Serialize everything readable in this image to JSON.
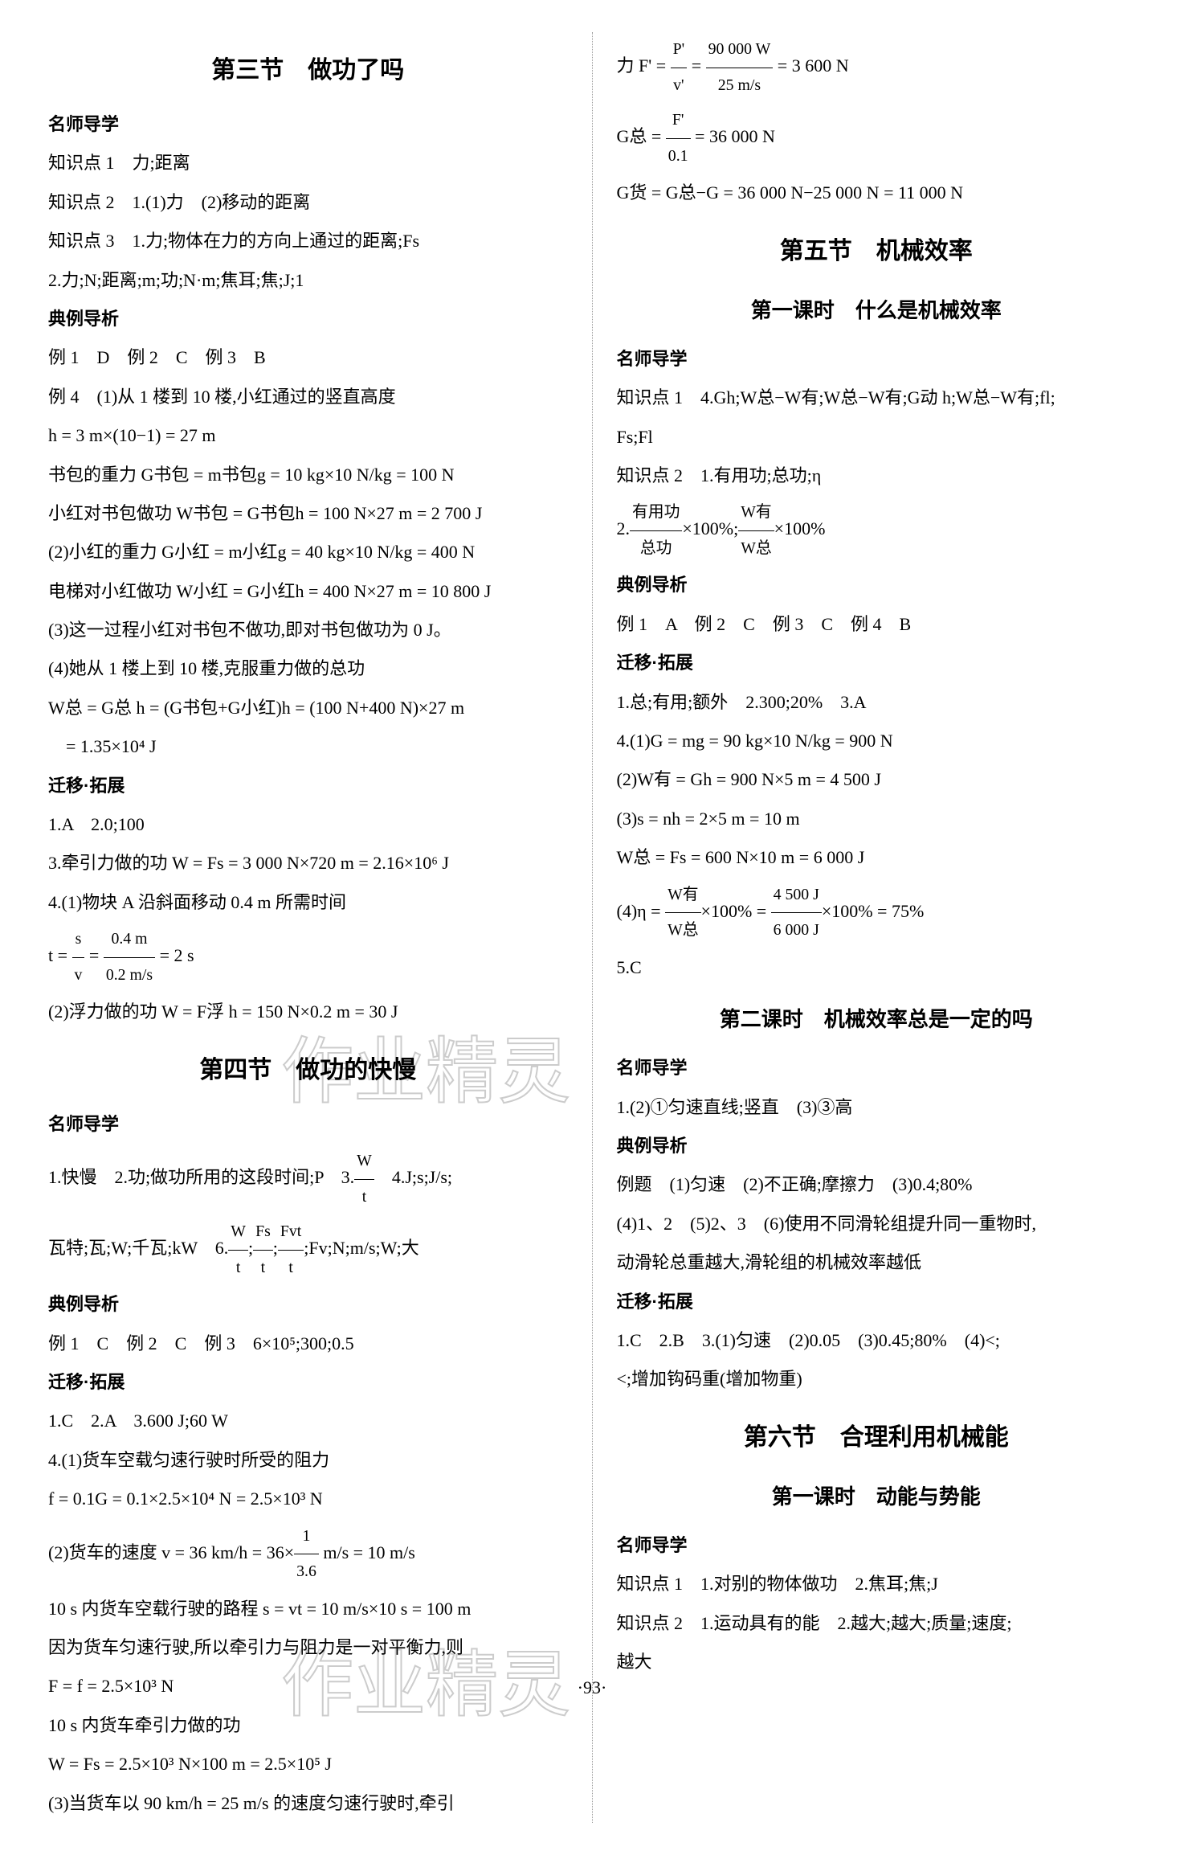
{
  "page_number": "·93·",
  "watermark_text": "作业精灵",
  "left": {
    "section3": {
      "title": "第三节　做功了吗",
      "teacher_guide": "名师导学",
      "kp1": "知识点 1　力;距离",
      "kp2": "知识点 2　1.(1)力　(2)移动的距离",
      "kp3a": "知识点 3　1.力;物体在力的方向上通过的距离;Fs",
      "kp3b": "2.力;N;距离;m;功;N·m;焦耳;焦;J;1",
      "examples": "典例导析",
      "ex1": "例 1　D　例 2　C　例 3　B",
      "ex4_1": "例 4　(1)从 1 楼到 10 楼,小红通过的竖直高度",
      "ex4_2": "h = 3 m×(10−1) = 27 m",
      "ex4_3": "书包的重力 G书包 = m书包g = 10 kg×10 N/kg = 100 N",
      "ex4_4": "小红对书包做功 W书包 = G书包h = 100 N×27 m = 2 700 J",
      "ex4_5": "(2)小红的重力 G小红 = m小红g = 40 kg×10 N/kg = 400 N",
      "ex4_6": "电梯对小红做功 W小红 = G小红h = 400 N×27 m = 10 800 J",
      "ex4_7": "(3)这一过程小红对书包不做功,即对书包做功为 0 J。",
      "ex4_8": "(4)她从 1 楼上到 10 楼,克服重力做的总功",
      "ex4_9": "W总 = G总 h = (G书包+G小红)h = (100 N+400 N)×27 m",
      "ex4_10": "　= 1.35×10⁴ J",
      "transfer": "迁移·拓展",
      "t1": "1.A　2.0;100",
      "t3": "3.牵引力做的功 W = Fs = 3 000 N×720 m = 2.16×10⁶ J",
      "t4_1": "4.(1)物块 A 沿斜面移动 0.4 m 所需时间",
      "t4_2a": "t = ",
      "t4_2_num1": "s",
      "t4_2_den1": "v",
      "t4_2b": " = ",
      "t4_2_num2": "0.4 m",
      "t4_2_den2": "0.2 m/s",
      "t4_2c": " = 2 s",
      "t4_3": "(2)浮力做的功 W = F浮 h = 150 N×0.2 m = 30 J"
    },
    "section4": {
      "title": "第四节　做功的快慢",
      "teacher_guide": "名师导学",
      "kp1a": "1.快慢　2.功;做功所用的这段时间;P　3.",
      "kp1_num": "W",
      "kp1_den": "t",
      "kp1b": "　4.J;s;J/s;",
      "kp2a": "瓦特;瓦;W;千瓦;kW　6.",
      "kp2_n1": "W",
      "kp2_d1": "t",
      "kp2b": ";",
      "kp2_n2": "Fs",
      "kp2_d2": "t",
      "kp2c": ";",
      "kp2_n3": "Fvt",
      "kp2_d3": "t",
      "kp2d": ";Fv;N;m/s;W;大",
      "examples": "典例导析",
      "ex1": "例 1　C　例 2　C　例 3　6×10⁵;300;0.5",
      "transfer": "迁移·拓展",
      "t1": "1.C　2.A　3.600 J;60 W",
      "t4_1": "4.(1)货车空载匀速行驶时所受的阻力",
      "t4_2": "f = 0.1G = 0.1×2.5×10⁴ N = 2.5×10³ N",
      "t4_3a": "(2)货车的速度 v = 36 km/h = 36×",
      "t4_3_num": "1",
      "t4_3_den": "3.6",
      "t4_3b": " m/s = 10 m/s",
      "t4_4": "10 s 内货车空载行驶的路程 s = vt = 10 m/s×10 s = 100 m",
      "t4_5": "因为货车匀速行驶,所以牵引力与阻力是一对平衡力,则",
      "t4_6": "F = f = 2.5×10³ N",
      "t4_7": "10 s 内货车牵引力做的功",
      "t4_8": "W = Fs = 2.5×10³ N×100 m = 2.5×10⁵ J",
      "t4_9": "(3)当货车以 90 km/h = 25 m/s 的速度匀速行驶时,牵引"
    }
  },
  "right": {
    "cont": {
      "l1a": "力 F' = ",
      "l1_n1": "P'",
      "l1_d1": "v'",
      "l1b": " = ",
      "l1_n2": "90 000 W",
      "l1_d2": "25 m/s",
      "l1c": " = 3 600 N",
      "l2a": "G总 = ",
      "l2_n1": "F'",
      "l2_d1": "0.1",
      "l2b": " = 36 000 N",
      "l3": "G货 = G总−G = 36 000 N−25 000 N = 11 000 N"
    },
    "section5": {
      "title": "第五节　机械效率",
      "sub1": {
        "title": "第一课时　什么是机械效率",
        "teacher_guide": "名师导学",
        "kp1a": "知识点 1　4.Gh;W总−W有;W总−W有;G动 h;W总−W有;fl;",
        "kp1b": "Fs;Fl",
        "kp2a": "知识点 2　1.有用功;总功;η",
        "kp2b_a": "2.",
        "kp2b_n1": "有用功",
        "kp2b_d1": "总功",
        "kp2b_b": "×100%;",
        "kp2b_n2": "W有",
        "kp2b_d2": "W总",
        "kp2b_c": "×100%",
        "examples": "典例导析",
        "ex1": "例 1　A　例 2　C　例 3　C　例 4　B",
        "transfer": "迁移·拓展",
        "t1": "1.总;有用;额外　2.300;20%　3.A",
        "t4_1": "4.(1)G = mg = 90 kg×10 N/kg = 900 N",
        "t4_2": "(2)W有 = Gh = 900 N×5 m = 4 500 J",
        "t4_3": "(3)s = nh = 2×5 m = 10 m",
        "t4_4": "W总 = Fs = 600 N×10 m = 6 000 J",
        "t4_5a": "(4)η = ",
        "t4_5_n1": "W有",
        "t4_5_d1": "W总",
        "t4_5b": "×100% = ",
        "t4_5_n2": "4 500 J",
        "t4_5_d2": "6 000 J",
        "t4_5c": "×100% = 75%",
        "t5": "5.C"
      },
      "sub2": {
        "title": "第二课时　机械效率总是一定的吗",
        "teacher_guide": "名师导学",
        "kp1": "1.(2)①匀速直线;竖直　(3)③高",
        "examples": "典例导析",
        "ex1": "例题　(1)匀速　(2)不正确;摩擦力　(3)0.4;80%",
        "ex2": "(4)1、2　(5)2、3　(6)使用不同滑轮组提升同一重物时,",
        "ex3": "动滑轮总重越大,滑轮组的机械效率越低",
        "transfer": "迁移·拓展",
        "t1": "1.C　2.B　3.(1)匀速　(2)0.05　(3)0.45;80%　(4)<;",
        "t2": "<;增加钩码重(增加物重)"
      }
    },
    "section6": {
      "title": "第六节　合理利用机械能",
      "sub1": {
        "title": "第一课时　动能与势能",
        "teacher_guide": "名师导学",
        "kp1": "知识点 1　1.对别的物体做功　2.焦耳;焦;J",
        "kp2": "知识点 2　1.运动具有的能　2.越大;越大;质量;速度;",
        "kp3": "越大"
      }
    }
  }
}
